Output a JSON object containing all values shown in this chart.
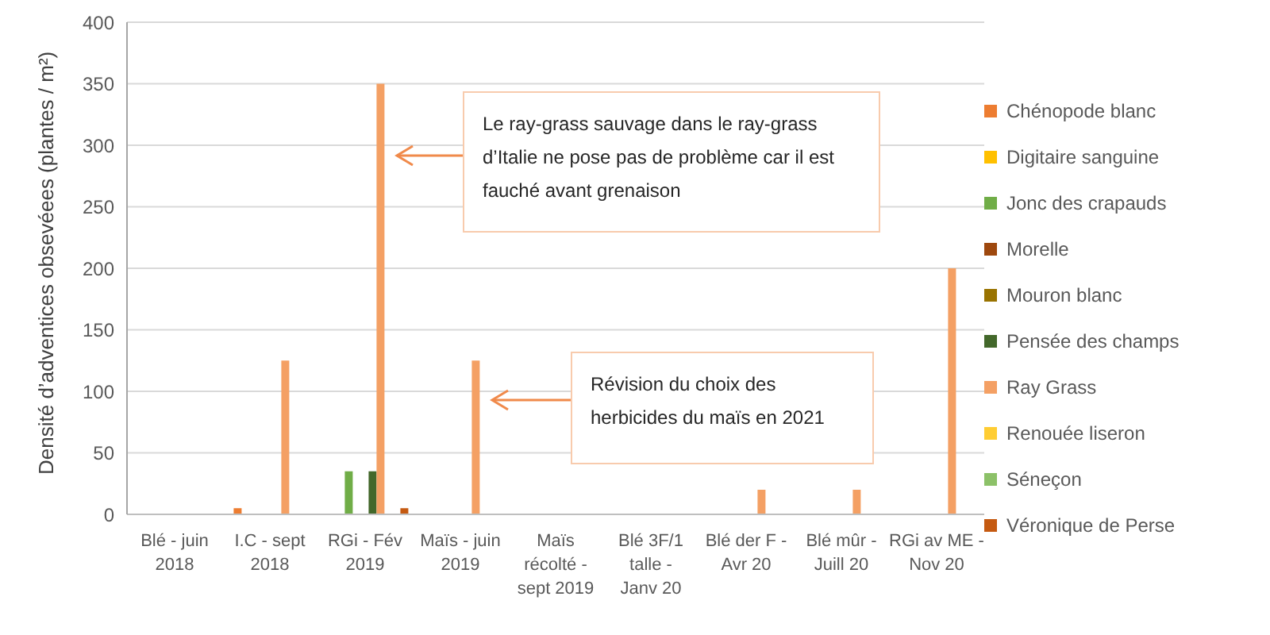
{
  "chart_data": {
    "type": "bar",
    "ylabel": "Densité d’adventices obsevéees (plantes / m²)",
    "categories": [
      "Blé - juin 2018",
      "I.C - sept 2018",
      "RGi - Fév 2019",
      "Maïs - juin 2019",
      "Maïs récolté - sept 2019",
      "Blé 3F/1 talle - Janv 20",
      "Blé der F - Avr 20",
      "Blé mûr - Juill 20",
      "RGi av ME - Nov 20"
    ],
    "series": [
      {
        "name": "Chénopode blanc",
        "color": "#ed7d31",
        "values": [
          0,
          5,
          0,
          0,
          0,
          0,
          0,
          0,
          0
        ]
      },
      {
        "name": "Digitaire sanguine",
        "color": "#ffc000",
        "values": [
          0,
          0,
          0,
          0,
          0,
          0,
          0,
          0,
          0
        ]
      },
      {
        "name": "Jonc des crapauds",
        "color": "#70ad47",
        "values": [
          0,
          0,
          35,
          0,
          0,
          0,
          0,
          0,
          0
        ]
      },
      {
        "name": "Morelle",
        "color": "#9e480e",
        "values": [
          0,
          0,
          0,
          0,
          0,
          0,
          0,
          0,
          0
        ]
      },
      {
        "name": "Mouron blanc",
        "color": "#997300",
        "values": [
          0,
          0,
          0,
          0,
          0,
          0,
          0,
          0,
          0
        ]
      },
      {
        "name": "Pensée des champs",
        "color": "#43682b",
        "values": [
          0,
          0,
          35,
          0,
          0,
          0,
          0,
          0,
          0
        ]
      },
      {
        "name": "Ray Grass",
        "color": "#f4a064",
        "values": [
          0,
          125,
          350,
          125,
          0,
          0,
          20,
          20,
          200
        ]
      },
      {
        "name": "Renouée liseron",
        "color": "#ffcd33",
        "values": [
          0,
          0,
          0,
          0,
          0,
          0,
          0,
          0,
          0
        ]
      },
      {
        "name": "Séneçon",
        "color": "#8cc168",
        "values": [
          0,
          0,
          0,
          0,
          0,
          0,
          0,
          0,
          0
        ]
      },
      {
        "name": "Véronique de Perse",
        "color": "#c55a11",
        "values": [
          0,
          0,
          5,
          0,
          0,
          0,
          0,
          0,
          0
        ]
      }
    ],
    "ylim": [
      0,
      400
    ],
    "yticks": [
      0,
      50,
      100,
      150,
      200,
      250,
      300,
      350,
      400
    ],
    "grid": "y",
    "legend": "right",
    "annotations": [
      "Le ray-grass sauvage dans le ray-grass d’Italie ne pose pas de problème car  il est fauché avant grenaison",
      "Révision du choix des herbicides du maïs  en 2021"
    ]
  }
}
